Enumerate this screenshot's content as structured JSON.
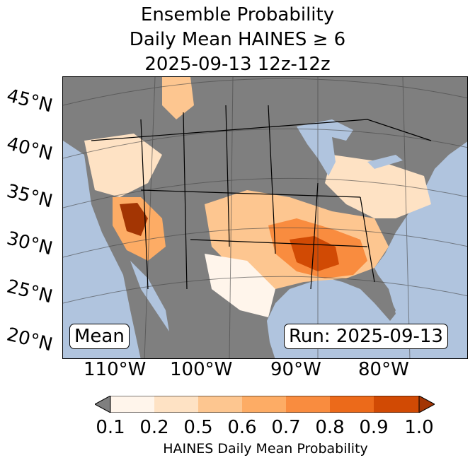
{
  "title": {
    "line1": "Ensemble Probability",
    "line2": "Daily Mean HAINES ≥ 6",
    "line3": "2025-09-13 12z-12z"
  },
  "map": {
    "lat_labels": [
      "45°N",
      "40°N",
      "35°N",
      "30°N",
      "25°N",
      "20°N"
    ],
    "lon_labels": [
      "110°W",
      "100°W",
      "90°W",
      "80°W"
    ],
    "stat_label": "Mean",
    "run_label": "Run: 2025-09-13",
    "colors": {
      "ocean": "#b0c4de",
      "land_below": "#7f7f7f",
      "bins": [
        "#fff5eb",
        "#fee2c4",
        "#fdc690",
        "#fdac65",
        "#f98c3f",
        "#ec6a1a",
        "#d14a04",
        "#a33503"
      ]
    }
  },
  "colorbar": {
    "label": "HAINES Daily Mean Probability",
    "ticks": [
      "0.1",
      "0.2",
      "0.5",
      "0.6",
      "0.7",
      "0.8",
      "0.9",
      "1.0"
    ],
    "colors": [
      "#fff5eb",
      "#fee2c4",
      "#fdc690",
      "#fdac65",
      "#f98c3f",
      "#ec6a1a",
      "#d14a04"
    ],
    "under_color": "#7f7f7f",
    "over_color": "#a33503"
  }
}
